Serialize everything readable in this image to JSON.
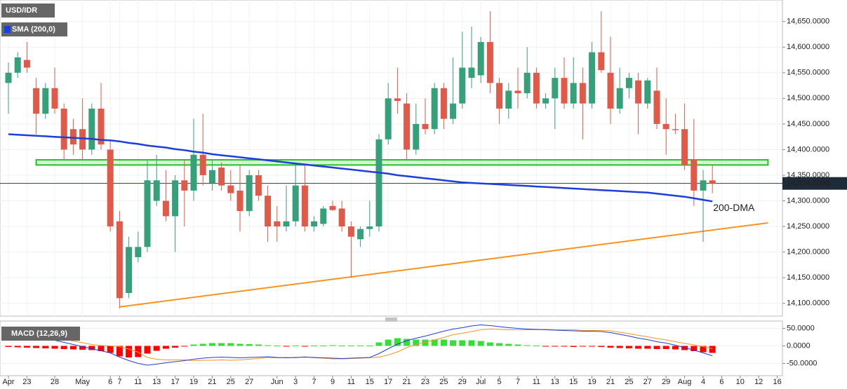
{
  "chart_data": [
    {
      "type": "candlestick",
      "title": "USD/IDR",
      "indicator_label": "SMA (200,0)",
      "sma_annotation": "200-DMA",
      "up_color": "#35a07a",
      "down_color": "#e05a4a",
      "sma_color": "#1d3fd8",
      "trend_color": "#f7941d",
      "zone_color": "#22c322",
      "ylim": [
        14075,
        14692
      ],
      "yticks": [
        {
          "value": 14100,
          "label": "14,100.0000"
        },
        {
          "value": 14150,
          "label": "14,150.0000"
        },
        {
          "value": 14200,
          "label": "14,200.0000"
        },
        {
          "value": 14250,
          "label": "14,250.0000"
        },
        {
          "value": 14300,
          "label": "14,300.0000"
        },
        {
          "value": 14350,
          "label": "14,350.0000"
        },
        {
          "value": 14400,
          "label": "14,400.0000"
        },
        {
          "value": 14450,
          "label": "14,450.0000"
        },
        {
          "value": 14500,
          "label": "14,500.0000"
        },
        {
          "value": 14550,
          "label": "14,550.0000"
        },
        {
          "value": 14600,
          "label": "14,600.0000"
        },
        {
          "value": 14650,
          "label": "14,650.0000"
        }
      ],
      "grid": true,
      "open": [
        14530,
        14550,
        14575,
        14520,
        14470,
        14520,
        14480,
        14440,
        14440,
        14400,
        14480,
        14400,
        14260,
        14120,
        14190,
        14210,
        14300,
        14300,
        14270,
        14340,
        14320,
        14390,
        14335,
        14365,
        14330,
        14320,
        14280,
        14350,
        14310,
        14260,
        14250,
        14260,
        14330,
        14250,
        14255,
        14290,
        14285,
        14250,
        14225,
        14245,
        14250,
        14420,
        14500,
        14490,
        14400,
        14450,
        14440,
        14520,
        14460,
        14490,
        14540,
        14545,
        14610,
        14530,
        14480,
        14515,
        14510,
        14550,
        14490,
        14500,
        14540,
        14490,
        14530,
        14490,
        14590,
        14550,
        14480,
        14520,
        14535,
        14490,
        14515,
        14450,
        14440,
        14440,
        14380,
        14320,
        14340,
        null,
        null,
        null,
        null,
        null,
        null,
        null
      ],
      "high": [
        14570,
        14590,
        14610,
        14540,
        14530,
        14560,
        14490,
        14460,
        14500,
        14490,
        14530,
        14420,
        14280,
        14230,
        14240,
        14380,
        14390,
        14360,
        14350,
        14380,
        14460,
        14470,
        14380,
        14375,
        14360,
        14370,
        14360,
        14360,
        14330,
        14290,
        14330,
        14370,
        14370,
        14270,
        14290,
        14300,
        14300,
        14260,
        14250,
        14300,
        14430,
        14530,
        14560,
        14510,
        14490,
        14500,
        14530,
        14530,
        14580,
        14630,
        14640,
        14620,
        14670,
        14540,
        14530,
        14560,
        14600,
        14560,
        14510,
        14560,
        14580,
        14580,
        14560,
        14610,
        14670,
        14620,
        14560,
        14550,
        14550,
        14540,
        14560,
        14500,
        14470,
        14490,
        14460,
        14360,
        14370,
        null,
        null,
        null,
        null,
        null,
        null,
        null
      ],
      "low": [
        14470,
        14540,
        14550,
        14430,
        14460,
        14470,
        14380,
        14390,
        14380,
        14390,
        14400,
        14240,
        14090,
        14110,
        14180,
        14200,
        14290,
        14260,
        14200,
        14250,
        14300,
        14330,
        14320,
        14320,
        14300,
        14240,
        14270,
        14300,
        14220,
        14220,
        14240,
        14250,
        14240,
        14240,
        14250,
        14280,
        14240,
        14150,
        14210,
        14230,
        14240,
        14410,
        14470,
        14380,
        14390,
        14430,
        14430,
        14440,
        14450,
        14480,
        14520,
        14530,
        14510,
        14450,
        14460,
        14480,
        14500,
        14480,
        14480,
        14440,
        14480,
        14480,
        14420,
        14480,
        14550,
        14450,
        14470,
        14500,
        14430,
        14480,
        14440,
        14390,
        14430,
        14360,
        14290,
        14220,
        14315,
        null,
        null,
        null,
        null,
        null,
        null,
        null
      ],
      "close": [
        14550,
        14580,
        14560,
        14470,
        14520,
        14480,
        14400,
        14410,
        14400,
        14480,
        14410,
        14250,
        14110,
        14210,
        14210,
        14340,
        14340,
        14270,
        14340,
        14320,
        14390,
        14350,
        14360,
        14330,
        14315,
        14280,
        14350,
        14310,
        14250,
        14250,
        14260,
        14330,
        14250,
        14260,
        14285,
        14282,
        14250,
        14230,
        14245,
        14250,
        14420,
        14500,
        14495,
        14400,
        14450,
        14440,
        14520,
        14460,
        14490,
        14560,
        14560,
        14610,
        14530,
        14480,
        14515,
        14510,
        14550,
        14490,
        14500,
        14540,
        14490,
        14530,
        14490,
        14590,
        14555,
        14480,
        14520,
        14540,
        14490,
        14535,
        14450,
        14440,
        14438,
        14370,
        14320,
        14340,
        14334,
        null,
        null,
        null,
        null,
        null,
        null,
        null
      ],
      "sma": [
        14430,
        14429,
        14428,
        14427,
        14426,
        14425,
        14424,
        14423,
        14422,
        14421,
        14419,
        14418,
        14416,
        14413,
        14411,
        14408,
        14406,
        14404,
        14401,
        14399,
        14396,
        14394,
        14391,
        14389,
        14387,
        14385,
        14383,
        14381,
        14379,
        14377,
        14375,
        14373,
        14371,
        14369,
        14367,
        14365,
        14363,
        14361,
        14359,
        14357,
        14355,
        14353,
        14350,
        14348,
        14346,
        14344,
        14342,
        14340,
        14338,
        14336,
        14335,
        14334,
        14333,
        14332,
        14331,
        14330,
        14329,
        14328,
        14327,
        14326,
        14325,
        14324,
        14323,
        14322,
        14321,
        14320,
        14319,
        14318,
        14317,
        14316,
        14314,
        14312,
        14310,
        14308,
        14305,
        14302,
        14299,
        null,
        null,
        null,
        null,
        null,
        null,
        null
      ],
      "last_price": {
        "value": 14334,
        "label": "14,334.0000"
      },
      "trendline": {
        "start_index": 12,
        "start_value": 14093,
        "end_index": 82,
        "end_value": 14257
      },
      "zone": {
        "start_index": 3,
        "end_index": 82,
        "low": 14370,
        "high": 14380
      }
    },
    {
      "type": "macd",
      "title": "MACD (12,26,9)",
      "categories": [
        "Apr",
        null,
        "23",
        null,
        null,
        "28",
        null,
        null,
        "May",
        null,
        null,
        "6",
        "7",
        null,
        "11",
        null,
        "13",
        null,
        "17",
        null,
        "19",
        null,
        "21",
        null,
        "25",
        null,
        "27",
        null,
        null,
        "Jun",
        null,
        "3",
        null,
        "7",
        null,
        "9",
        null,
        "11",
        null,
        "15",
        null,
        "17",
        null,
        "21",
        null,
        "23",
        null,
        "25",
        null,
        "29",
        null,
        "Jul",
        null,
        "5",
        null,
        "7",
        null,
        "11",
        null,
        "13",
        null,
        "15",
        null,
        "19",
        null,
        "21",
        null,
        "25",
        null,
        "27",
        null,
        "29",
        null,
        "Aug",
        null,
        "4",
        null,
        "6",
        null,
        "10",
        null,
        "12",
        null,
        "16"
      ],
      "ylim": [
        -85,
        71
      ],
      "yticks": [
        {
          "value": 50,
          "label": "50.0000"
        },
        {
          "value": 0,
          "label": "0.0000"
        },
        {
          "value": -50,
          "label": "-50.0000"
        }
      ],
      "up_color": "#33e033",
      "down_color": "#ff0000",
      "macd_color": "#1d3fd8",
      "signal_color": "#f7941d",
      "histogram": [
        -3,
        -4,
        -5,
        -6,
        -7,
        -8,
        -9,
        -10,
        -11,
        -12,
        -15,
        -20,
        -30,
        -33,
        -32,
        -22,
        -14,
        -8,
        -5,
        -2,
        4,
        6,
        8,
        8,
        8,
        6,
        5,
        4,
        2,
        1,
        -1,
        1,
        -1,
        1,
        1,
        2,
        1,
        1,
        1,
        1,
        10,
        18,
        22,
        20,
        18,
        18,
        18,
        18,
        16,
        16,
        16,
        14,
        10,
        8,
        6,
        4,
        2,
        1,
        -1,
        -1,
        -2,
        -3,
        -2,
        -2,
        -3,
        -5,
        -6,
        -7,
        -8,
        -8,
        -9,
        -9,
        -10,
        -12,
        -15,
        -18,
        -20,
        null,
        null,
        null,
        null,
        null,
        null,
        null
      ],
      "macd": [
        45,
        40,
        35,
        28,
        22,
        16,
        10,
        4,
        -2,
        -8,
        -14,
        -20,
        -32,
        -42,
        -50,
        -55,
        -52,
        -48,
        -45,
        -42,
        -38,
        -35,
        -33,
        -32,
        -33,
        -34,
        -33,
        -32,
        -31,
        -33,
        -34,
        -33,
        -32,
        -33,
        -34,
        -35,
        -36,
        -35,
        -34,
        -33,
        -22,
        -8,
        5,
        15,
        22,
        28,
        35,
        42,
        48,
        52,
        57,
        60,
        58,
        55,
        52,
        50,
        48,
        47,
        46,
        45,
        44,
        43,
        42,
        42,
        41,
        38,
        33,
        28,
        22,
        18,
        12,
        8,
        2,
        -5,
        -12,
        -20,
        -28,
        null,
        null,
        null,
        null,
        null,
        null,
        null
      ],
      "signal": [
        48,
        44,
        40,
        34,
        29,
        24,
        19,
        14,
        9,
        4,
        1,
        0,
        -2,
        -9,
        -18,
        -33,
        -38,
        -40,
        -40,
        -40,
        -42,
        -41,
        -41,
        -40,
        -41,
        -40,
        -38,
        -36,
        -33,
        -34,
        -33,
        -34,
        -31,
        -34,
        -35,
        -37,
        -37,
        -36,
        -35,
        -34,
        -32,
        -26,
        -17,
        -5,
        4,
        10,
        17,
        24,
        32,
        36,
        41,
        46,
        48,
        47,
        46,
        46,
        46,
        46,
        47,
        46,
        46,
        46,
        44,
        44,
        44,
        43,
        39,
        35,
        30,
        26,
        21,
        17,
        12,
        7,
        3,
        -2,
        -8,
        null,
        null,
        null,
        null,
        null,
        null,
        null
      ]
    }
  ]
}
